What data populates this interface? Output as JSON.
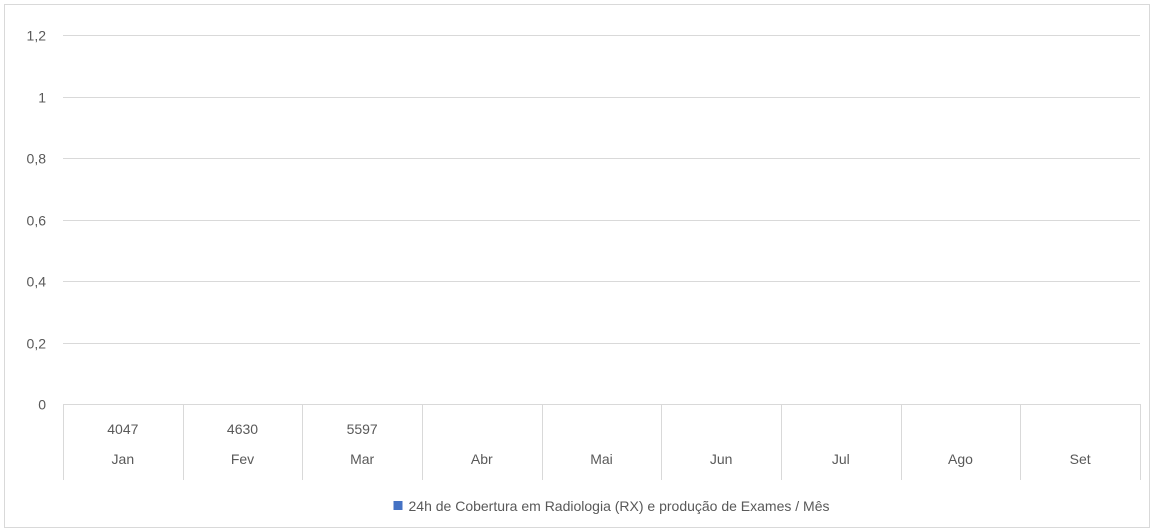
{
  "chart_data": {
    "type": "table",
    "title": "",
    "xlabel": "",
    "ylabel": "",
    "ylim": [
      0,
      1.2
    ],
    "y_ticks": [
      "0",
      "0,2",
      "0,4",
      "0,6",
      "0,8",
      "1",
      "1,2"
    ],
    "categories": [
      "Jan",
      "Fev",
      "Mar",
      "Abr",
      "Mai",
      "Jun",
      "Jul",
      "Ago",
      "Set"
    ],
    "series": [
      {
        "name": "24h de Cobertura em Radiologia (RX) e produção de Exames / Mês",
        "values": [
          4047,
          4630,
          5597,
          null,
          null,
          null,
          null,
          null,
          null
        ]
      }
    ],
    "gridlines": true,
    "legend_position": "bottom",
    "colors": {
      "series": "#4472c4",
      "grid": "#d9d9d9",
      "text": "#595959"
    }
  }
}
